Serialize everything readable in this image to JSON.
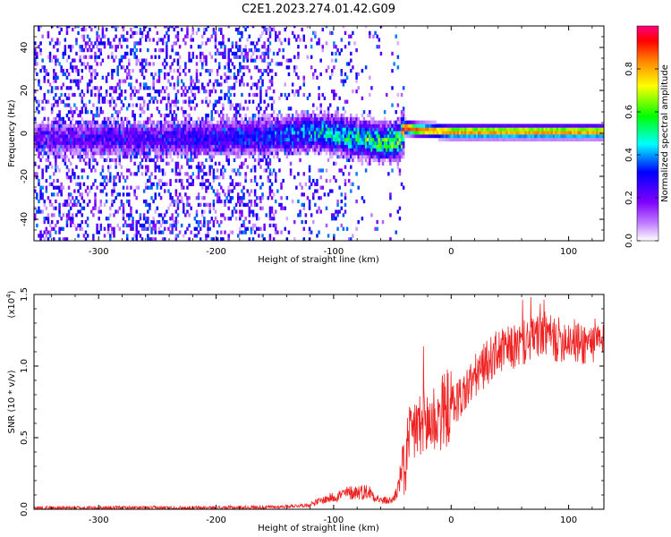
{
  "figure": {
    "title": "C2E1.2023.274.01.42.G09"
  },
  "chart_data": [
    {
      "type": "heatmap",
      "xlabel": "Height of straight line (km)",
      "ylabel": "Frequency (Hz)",
      "xlim": [
        -355,
        130
      ],
      "ylim": [
        -50,
        50
      ],
      "x_ticks": [
        "-300",
        "-200",
        "-100",
        "0",
        "100"
      ],
      "y_ticks": [
        "-40",
        "-20",
        "0",
        "20",
        "40"
      ],
      "grid": false,
      "colorbar": {
        "label": "Normalized spectral amplitude",
        "range": [
          0,
          1
        ],
        "ticks": [
          "0.0",
          "0.2",
          "0.4",
          "0.6",
          "0.8"
        ],
        "colormap": [
          "#ffffff",
          "#8000ff",
          "#0000ff",
          "#00ffff",
          "#00ff00",
          "#ffff00",
          "#ff8000",
          "#ff0000",
          "#ff0080"
        ]
      },
      "signal_track": {
        "x": [
          -355,
          -300,
          -250,
          -200,
          -150,
          -120,
          -100,
          -80,
          -60,
          -45,
          -40,
          -30,
          0,
          50,
          100,
          130
        ],
        "freq_hz": [
          -3,
          -3,
          -3,
          -3,
          -2,
          0,
          -1,
          -3,
          -5,
          -4,
          2,
          1,
          0,
          0,
          0,
          0
        ],
        "peak_amplitude": [
          0.15,
          0.2,
          0.2,
          0.25,
          0.3,
          0.4,
          0.45,
          0.5,
          0.55,
          0.55,
          0.9,
          0.85,
          0.8,
          0.8,
          0.8,
          0.8
        ]
      }
    },
    {
      "type": "line",
      "xlabel": "Height of straight line (km)",
      "ylabel": "SNR (10 * v/v)",
      "scale_label": "(x10",
      "scale_exp": "4",
      "scale_close": ")",
      "xlim": [
        -355,
        130
      ],
      "ylim": [
        0,
        1.5
      ],
      "x_ticks": [
        "-300",
        "-200",
        "-100",
        "0",
        "100"
      ],
      "y_ticks": [
        "0.0",
        "0.5",
        "1.0",
        "1.5"
      ],
      "color": "#ee2222",
      "grid": false,
      "series": [
        {
          "x": [
            -355,
            -300,
            -250,
            -200,
            -150,
            -120,
            -100,
            -90,
            -80,
            -70,
            -60,
            -50,
            -45,
            -40,
            -35,
            -30,
            -25,
            -20,
            -15,
            -10,
            -5,
            0,
            10,
            20,
            30,
            40,
            50,
            60,
            70,
            80,
            90,
            100,
            110,
            120,
            130
          ],
          "values": [
            0.01,
            0.01,
            0.01,
            0.01,
            0.015,
            0.03,
            0.07,
            0.09,
            0.1,
            0.1,
            0.05,
            0.05,
            0.12,
            0.3,
            0.45,
            0.6,
            0.55,
            0.6,
            0.63,
            0.65,
            0.7,
            0.72,
            0.8,
            0.92,
            1.02,
            1.1,
            1.12,
            1.15,
            1.2,
            1.22,
            1.18,
            1.2,
            1.15,
            1.18,
            1.15
          ]
        }
      ]
    }
  ]
}
